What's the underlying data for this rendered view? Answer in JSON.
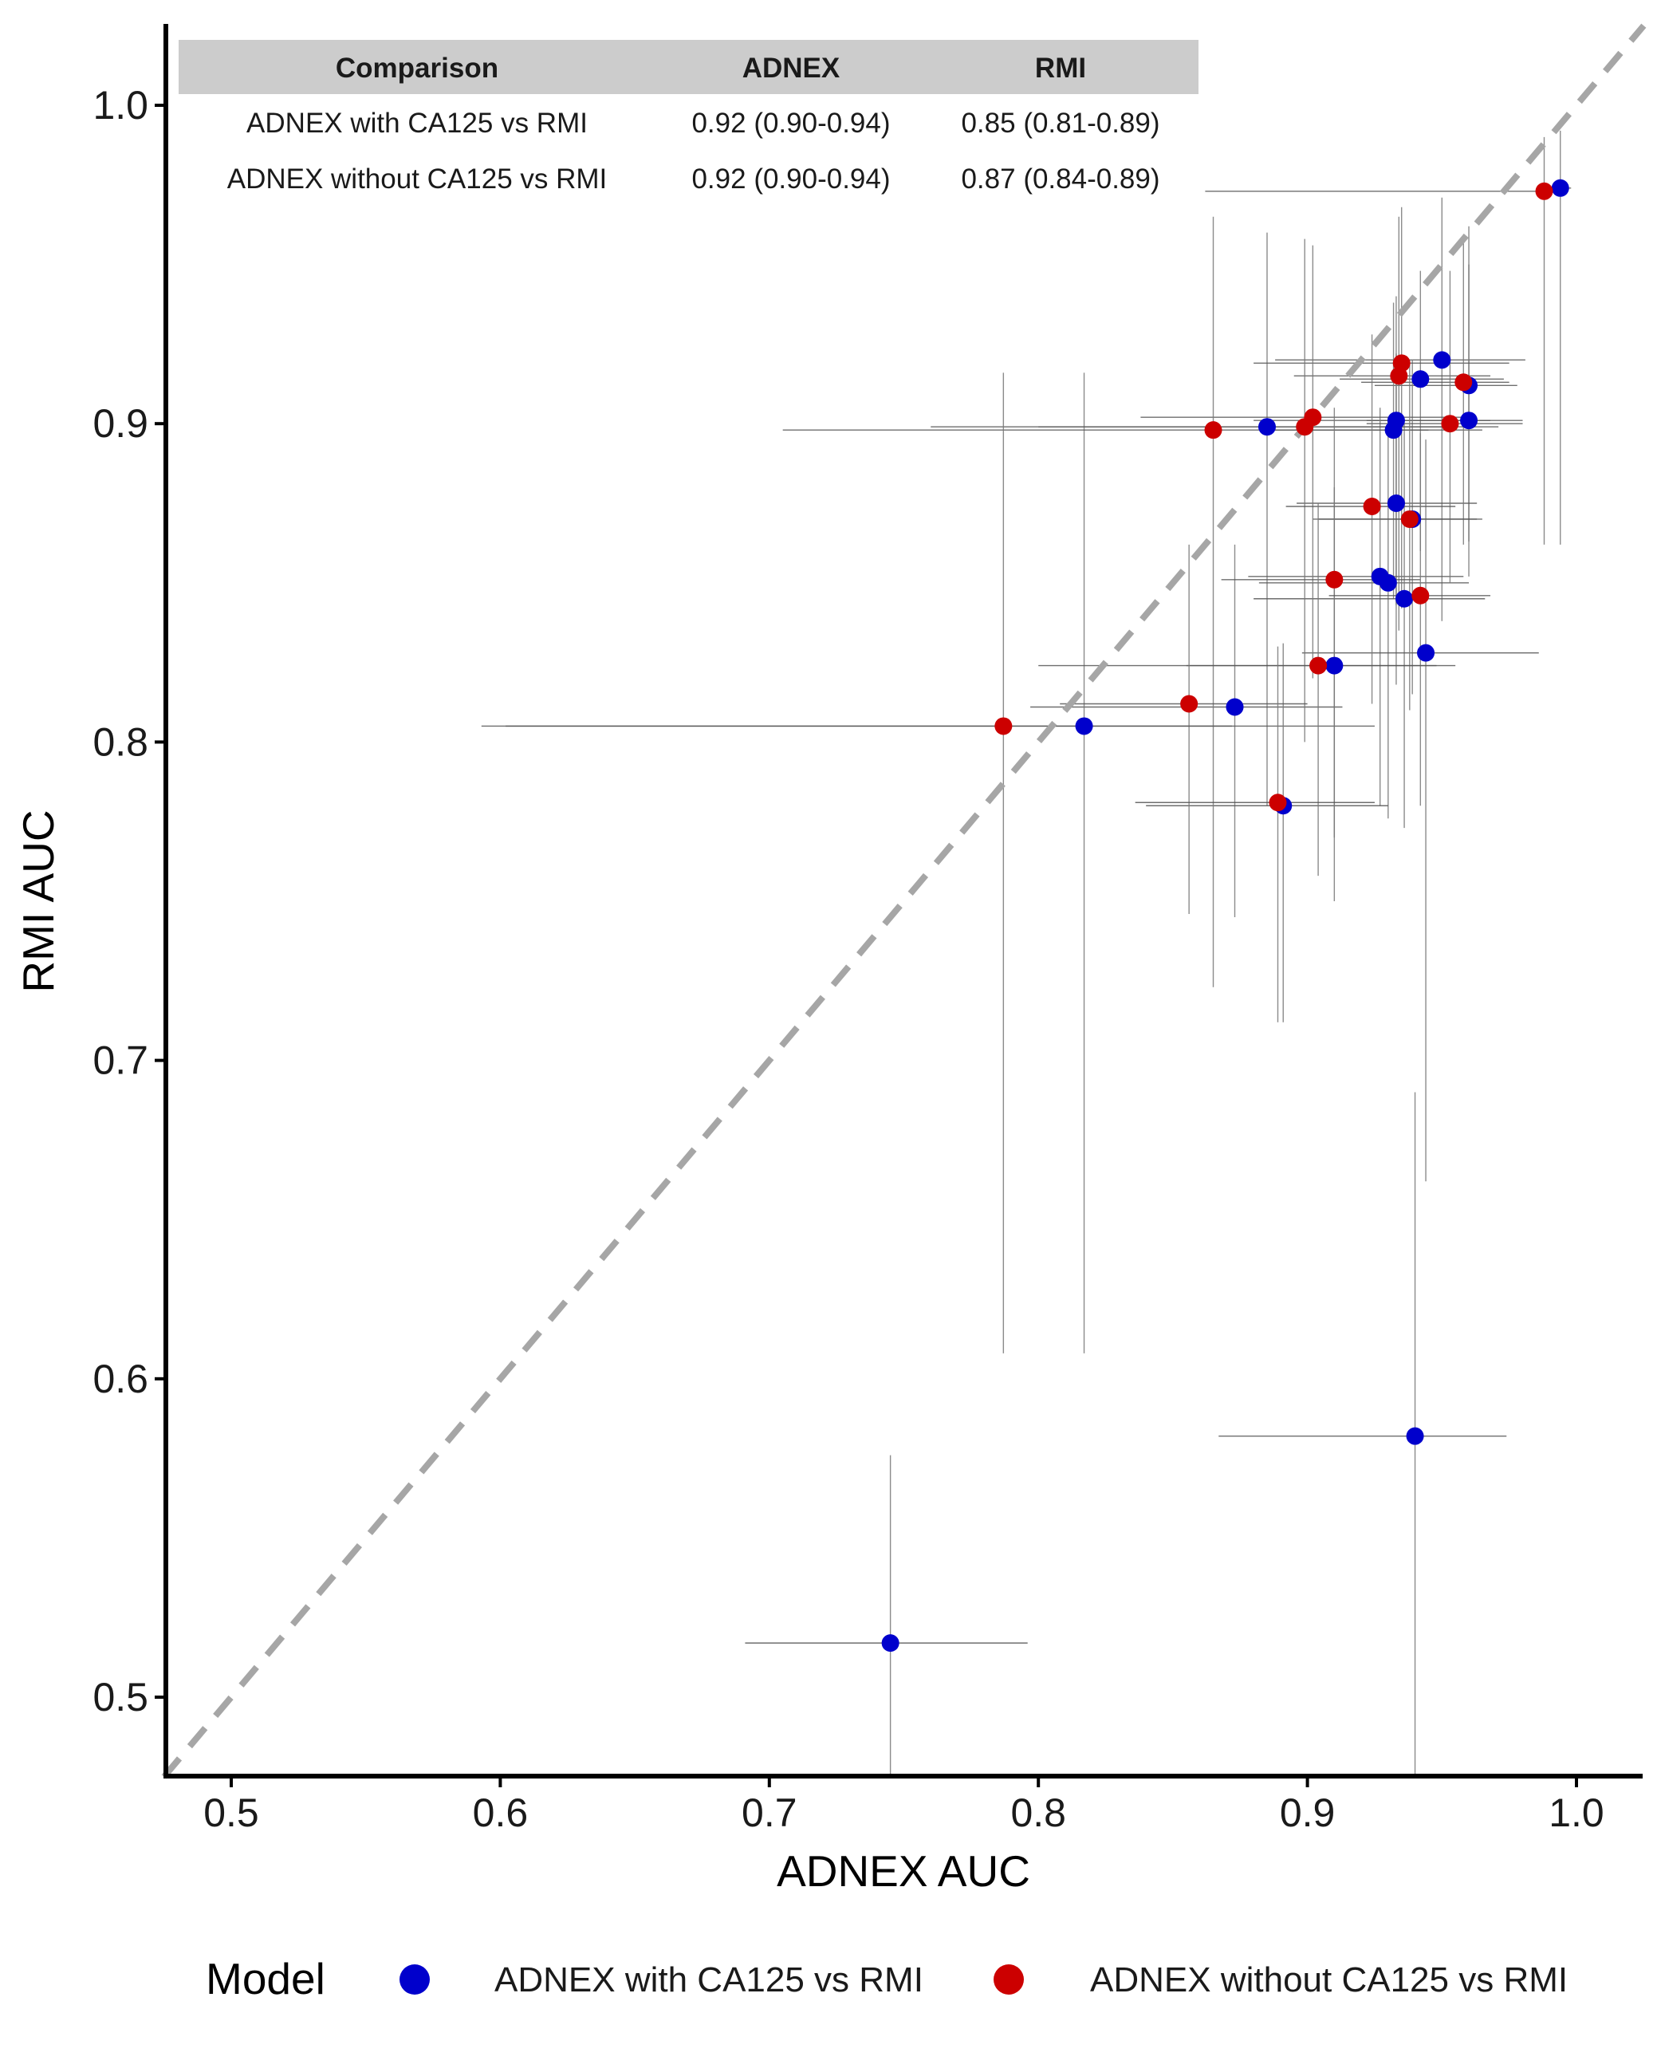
{
  "chart_data": {
    "type": "scatter",
    "xlabel": "ADNEX AUC",
    "ylabel": "RMI AUC",
    "xlim": [
      0.475,
      1.025
    ],
    "ylim": [
      0.475,
      1.025
    ],
    "x_ticks": [
      0.5,
      0.6,
      0.7,
      0.8,
      0.9,
      1.0
    ],
    "x_tick_labels": [
      "0.5",
      "0.6",
      "0.7",
      "0.8",
      "0.9",
      "1.0"
    ],
    "y_ticks": [
      0.5,
      0.6,
      0.7,
      0.8,
      0.9,
      1.0
    ],
    "y_tick_labels": [
      "0.5",
      "0.6",
      "0.7",
      "0.8",
      "0.9",
      "1.0"
    ],
    "reference_line": {
      "from": [
        0.475,
        0.475
      ],
      "to": [
        1.025,
        1.025
      ],
      "style": "dashed",
      "color": "#A6A6A6"
    },
    "grid": false,
    "legend": {
      "title": "Model",
      "position": "bottom",
      "items": [
        {
          "label": "ADNEX with CA125 vs RMI",
          "color": "#0000CC"
        },
        {
          "label": "ADNEX without CA125 vs RMI",
          "color": "#CC0000"
        }
      ]
    },
    "table": {
      "headers": [
        "Comparison",
        "ADNEX",
        "RMI"
      ],
      "rows": [
        [
          "ADNEX with CA125 vs RMI",
          "0.92 (0.90-0.94)",
          "0.85 (0.81-0.89)"
        ],
        [
          "ADNEX without CA125 vs RMI",
          "0.92 (0.90-0.94)",
          "0.87 (0.84-0.89)"
        ]
      ]
    },
    "series": [
      {
        "name": "ADNEX with CA125 vs RMI",
        "color": "#0000CC",
        "points": [
          {
            "x": 0.994,
            "y": 0.974,
            "xlo": 0.99,
            "xhi": 0.998,
            "ylo": 0.862,
            "yhi": 0.992
          },
          {
            "x": 0.95,
            "y": 0.92,
            "xlo": 0.888,
            "xhi": 0.981,
            "ylo": 0.838,
            "yhi": 0.971
          },
          {
            "x": 0.942,
            "y": 0.914,
            "xlo": 0.912,
            "xhi": 0.973,
            "ylo": 0.86,
            "yhi": 0.948
          },
          {
            "x": 0.96,
            "y": 0.912,
            "xlo": 0.925,
            "xhi": 0.978,
            "ylo": 0.863,
            "yhi": 0.962
          },
          {
            "x": 0.885,
            "y": 0.899,
            "xlo": 0.76,
            "xhi": 0.971,
            "ylo": 0.78,
            "yhi": 0.96
          },
          {
            "x": 0.933,
            "y": 0.901,
            "xlo": 0.88,
            "xhi": 0.968,
            "ylo": 0.843,
            "yhi": 0.94
          },
          {
            "x": 0.932,
            "y": 0.898,
            "xlo": 0.885,
            "xhi": 0.965,
            "ylo": 0.845,
            "yhi": 0.938
          },
          {
            "x": 0.96,
            "y": 0.901,
            "xlo": 0.922,
            "xhi": 0.98,
            "ylo": 0.852,
            "yhi": 0.95
          },
          {
            "x": 0.933,
            "y": 0.875,
            "xlo": 0.896,
            "xhi": 0.963,
            "ylo": 0.818,
            "yhi": 0.922
          },
          {
            "x": 0.939,
            "y": 0.87,
            "xlo": 0.902,
            "xhi": 0.965,
            "ylo": 0.815,
            "yhi": 0.92
          },
          {
            "x": 0.927,
            "y": 0.852,
            "xlo": 0.878,
            "xhi": 0.958,
            "ylo": 0.78,
            "yhi": 0.905
          },
          {
            "x": 0.93,
            "y": 0.85,
            "xlo": 0.882,
            "xhi": 0.96,
            "ylo": 0.776,
            "yhi": 0.902
          },
          {
            "x": 0.936,
            "y": 0.845,
            "xlo": 0.88,
            "xhi": 0.966,
            "ylo": 0.773,
            "yhi": 0.9
          },
          {
            "x": 0.944,
            "y": 0.828,
            "xlo": 0.898,
            "xhi": 0.986,
            "ylo": 0.662,
            "yhi": 0.895
          },
          {
            "x": 0.91,
            "y": 0.824,
            "xlo": 0.855,
            "xhi": 0.955,
            "ylo": 0.75,
            "yhi": 0.88
          },
          {
            "x": 0.873,
            "y": 0.811,
            "xlo": 0.797,
            "xhi": 0.913,
            "ylo": 0.745,
            "yhi": 0.862
          },
          {
            "x": 0.817,
            "y": 0.805,
            "xlo": 0.602,
            "xhi": 0.925,
            "ylo": 0.608,
            "yhi": 0.916
          },
          {
            "x": 0.891,
            "y": 0.78,
            "xlo": 0.84,
            "xhi": 0.93,
            "ylo": 0.712,
            "yhi": 0.831
          },
          {
            "x": 0.94,
            "y": 0.582,
            "xlo": 0.867,
            "xhi": 0.974,
            "ylo": 0.475,
            "yhi": 0.69
          },
          {
            "x": 0.745,
            "y": 0.517,
            "xlo": 0.691,
            "xhi": 0.796,
            "ylo": 0.475,
            "yhi": 0.576
          }
        ]
      },
      {
        "name": "ADNEX without CA125 vs RMI",
        "color": "#CC0000",
        "points": [
          {
            "x": 0.988,
            "y": 0.973,
            "xlo": 0.862,
            "xhi": 0.992,
            "ylo": 0.862,
            "yhi": 0.99
          },
          {
            "x": 0.935,
            "y": 0.919,
            "xlo": 0.88,
            "xhi": 0.975,
            "ylo": 0.842,
            "yhi": 0.968
          },
          {
            "x": 0.934,
            "y": 0.915,
            "xlo": 0.895,
            "xhi": 0.968,
            "ylo": 0.835,
            "yhi": 0.965
          },
          {
            "x": 0.958,
            "y": 0.913,
            "xlo": 0.92,
            "xhi": 0.975,
            "ylo": 0.862,
            "yhi": 0.958
          },
          {
            "x": 0.902,
            "y": 0.902,
            "xlo": 0.838,
            "xhi": 0.96,
            "ylo": 0.82,
            "yhi": 0.956
          },
          {
            "x": 0.899,
            "y": 0.899,
            "xlo": 0.8,
            "xhi": 0.95,
            "ylo": 0.8,
            "yhi": 0.958
          },
          {
            "x": 0.865,
            "y": 0.898,
            "xlo": 0.705,
            "xhi": 0.945,
            "ylo": 0.723,
            "yhi": 0.965
          },
          {
            "x": 0.953,
            "y": 0.9,
            "xlo": 0.922,
            "xhi": 0.98,
            "ylo": 0.85,
            "yhi": 0.948
          },
          {
            "x": 0.924,
            "y": 0.874,
            "xlo": 0.892,
            "xhi": 0.955,
            "ylo": 0.812,
            "yhi": 0.928
          },
          {
            "x": 0.938,
            "y": 0.87,
            "xlo": 0.904,
            "xhi": 0.963,
            "ylo": 0.81,
            "yhi": 0.92
          },
          {
            "x": 0.91,
            "y": 0.851,
            "xlo": 0.868,
            "xhi": 0.942,
            "ylo": 0.77,
            "yhi": 0.905
          },
          {
            "x": 0.942,
            "y": 0.846,
            "xlo": 0.908,
            "xhi": 0.968,
            "ylo": 0.78,
            "yhi": 0.897
          },
          {
            "x": 0.904,
            "y": 0.824,
            "xlo": 0.8,
            "xhi": 0.948,
            "ylo": 0.758,
            "yhi": 0.875
          },
          {
            "x": 0.856,
            "y": 0.812,
            "xlo": 0.808,
            "xhi": 0.9,
            "ylo": 0.746,
            "yhi": 0.862
          },
          {
            "x": 0.787,
            "y": 0.805,
            "xlo": 0.593,
            "xhi": 0.872,
            "ylo": 0.608,
            "yhi": 0.916
          },
          {
            "x": 0.889,
            "y": 0.781,
            "xlo": 0.836,
            "xhi": 0.925,
            "ylo": 0.712,
            "yhi": 0.83
          }
        ]
      }
    ]
  }
}
